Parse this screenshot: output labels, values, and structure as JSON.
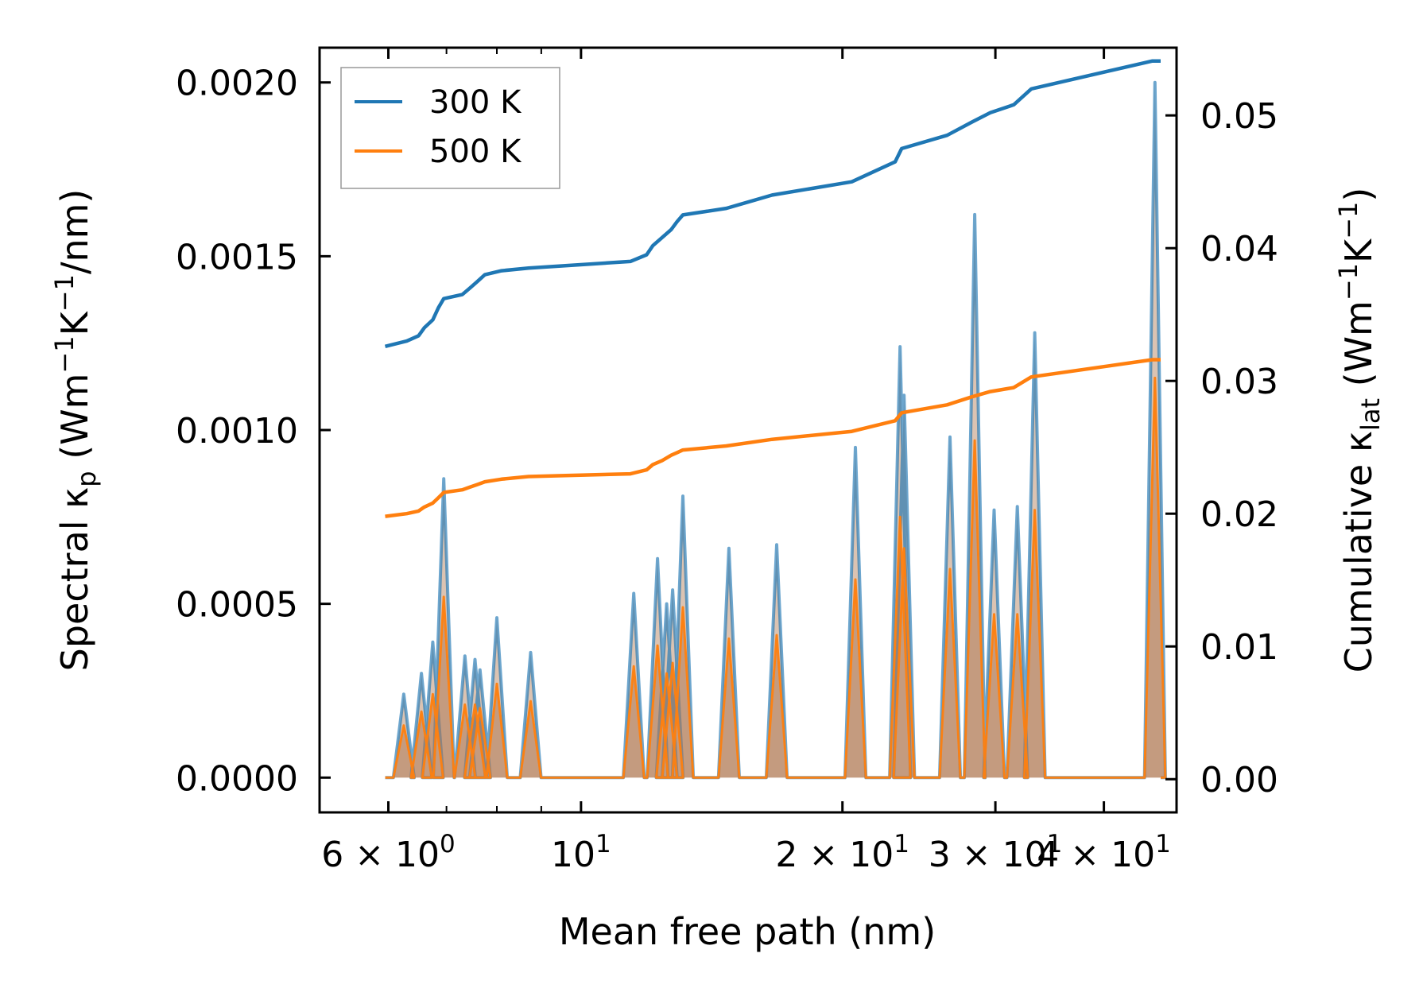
{
  "chart_data": {
    "type": "line",
    "title": "",
    "xlabel": "Mean free path (nm)",
    "ylabel_left": {
      "main": "Spectral κ",
      "sub": "p",
      "unit": " (Wm",
      "e1": "−1",
      "mid": "K",
      "e2": "−1",
      "tail": "/nm)"
    },
    "ylabel_right": {
      "main": "Cumulative κ",
      "sub": "lat",
      "unit": " (Wm",
      "e1": "−1",
      "mid": "K",
      "e2": "−1",
      "tail": ")"
    },
    "xscale": "log",
    "xlim": [
      5.0,
      48.5
    ],
    "ylim_left": [
      -0.0001,
      0.0021
    ],
    "ylim_right": [
      -0.0025,
      0.0551
    ],
    "x_major_ticks": [
      {
        "value": 6,
        "base": "6",
        "times": "×",
        "mant": "10",
        "exp": "0"
      },
      {
        "value": 10,
        "base": "",
        "times": "",
        "mant": "10",
        "exp": "1"
      },
      {
        "value": 20,
        "base": "2",
        "times": "×",
        "mant": "10",
        "exp": "1"
      },
      {
        "value": 30,
        "base": "3",
        "times": "×",
        "mant": "10",
        "exp": "1"
      },
      {
        "value": 40,
        "base": "4",
        "times": "×",
        "mant": "10",
        "exp": "1"
      }
    ],
    "x_minor_ticks": [
      7,
      8,
      9
    ],
    "y_left_ticks": [
      "0.0000",
      "0.0005",
      "0.0010",
      "0.0015",
      "0.0020"
    ],
    "y_left_tick_values": [
      0,
      0.0005,
      0.001,
      0.0015,
      0.002
    ],
    "y_right_ticks": [
      "0.00",
      "0.01",
      "0.02",
      "0.03",
      "0.04",
      "0.05"
    ],
    "y_right_tick_values": [
      0,
      0.01,
      0.02,
      0.03,
      0.04,
      0.05
    ],
    "legend": {
      "position": "top-left",
      "entries": [
        "300 K",
        "500 K"
      ]
    },
    "colors": {
      "300 K": "#1f77b4",
      "500 K": "#ff7f0e",
      "fill": "#b07a55"
    },
    "spectral_series": [
      {
        "name": "300 K",
        "axis": "left",
        "peaks": [
          [
            6.25,
            0.00024
          ],
          [
            6.55,
            0.0003
          ],
          [
            6.75,
            0.00039
          ],
          [
            6.95,
            0.00086
          ],
          [
            7.35,
            0.00035
          ],
          [
            7.55,
            0.00034
          ],
          [
            7.65,
            0.00031
          ],
          [
            8.0,
            0.00046
          ],
          [
            8.75,
            0.00036
          ],
          [
            11.5,
            0.00053
          ],
          [
            12.25,
            0.00063
          ],
          [
            12.55,
            0.0005
          ],
          [
            12.75,
            0.00054
          ],
          [
            13.1,
            0.00081
          ],
          [
            14.8,
            0.00066
          ],
          [
            16.8,
            0.00067
          ],
          [
            20.7,
            0.00095
          ],
          [
            23.3,
            0.00124
          ],
          [
            23.55,
            0.0011
          ],
          [
            26.6,
            0.00098
          ],
          [
            28.4,
            0.00162
          ],
          [
            29.9,
            0.00077
          ],
          [
            31.8,
            0.00078
          ],
          [
            33.3,
            0.00128
          ],
          [
            45.8,
            0.002
          ]
        ]
      },
      {
        "name": "500 K",
        "axis": "left",
        "peaks": [
          [
            6.25,
            0.00015
          ],
          [
            6.55,
            0.00019
          ],
          [
            6.75,
            0.00024
          ],
          [
            6.95,
            0.00052
          ],
          [
            7.35,
            0.00021
          ],
          [
            7.55,
            0.00021
          ],
          [
            7.65,
            0.0002
          ],
          [
            8.0,
            0.00027
          ],
          [
            8.75,
            0.00022
          ],
          [
            11.5,
            0.00032
          ],
          [
            12.25,
            0.00038
          ],
          [
            12.55,
            0.0003
          ],
          [
            12.75,
            0.00033
          ],
          [
            13.1,
            0.00049
          ],
          [
            14.8,
            0.0004
          ],
          [
            16.8,
            0.00041
          ],
          [
            20.7,
            0.00057
          ],
          [
            23.3,
            0.00075
          ],
          [
            23.55,
            0.00066
          ],
          [
            26.6,
            0.0006
          ],
          [
            28.4,
            0.00097
          ],
          [
            29.9,
            0.00047
          ],
          [
            31.8,
            0.00047
          ],
          [
            33.3,
            0.00077
          ],
          [
            45.8,
            0.00115
          ]
        ]
      }
    ],
    "cumulative_series": [
      {
        "name": "300 K",
        "axis": "right",
        "x": [
          5.95,
          6.3,
          6.5,
          6.6,
          6.75,
          6.85,
          6.95,
          7.3,
          7.45,
          7.6,
          7.75,
          8.1,
          8.7,
          11.4,
          11.9,
          12.1,
          12.4,
          12.7,
          12.9,
          13.1,
          14.7,
          16.6,
          20.5,
          23.0,
          23.4,
          26.4,
          28.2,
          29.6,
          31.5,
          33.0,
          45.5,
          46.5
        ],
        "y": [
          0.0326,
          0.033,
          0.0334,
          0.034,
          0.0346,
          0.0355,
          0.0362,
          0.0365,
          0.037,
          0.0375,
          0.038,
          0.0383,
          0.0385,
          0.039,
          0.0395,
          0.0402,
          0.0408,
          0.0414,
          0.042,
          0.0425,
          0.043,
          0.044,
          0.045,
          0.0465,
          0.0475,
          0.0485,
          0.0495,
          0.0502,
          0.0508,
          0.052,
          0.0541,
          0.0541
        ]
      },
      {
        "name": "500 K",
        "axis": "right",
        "x": [
          5.95,
          6.3,
          6.5,
          6.6,
          6.75,
          6.85,
          6.95,
          7.3,
          7.45,
          7.6,
          7.75,
          8.1,
          8.7,
          11.4,
          11.9,
          12.1,
          12.4,
          12.7,
          12.9,
          13.1,
          14.7,
          16.6,
          20.5,
          23.0,
          23.4,
          26.4,
          28.2,
          29.6,
          31.5,
          33.0,
          45.5,
          46.5
        ],
        "y": [
          0.0198,
          0.02,
          0.0202,
          0.0205,
          0.0208,
          0.0212,
          0.0216,
          0.0218,
          0.022,
          0.0222,
          0.0224,
          0.0226,
          0.0228,
          0.023,
          0.0233,
          0.0237,
          0.024,
          0.0244,
          0.0246,
          0.0248,
          0.0251,
          0.0256,
          0.0262,
          0.027,
          0.0276,
          0.0282,
          0.0288,
          0.0292,
          0.0295,
          0.0303,
          0.0316,
          0.0316
        ]
      }
    ]
  }
}
